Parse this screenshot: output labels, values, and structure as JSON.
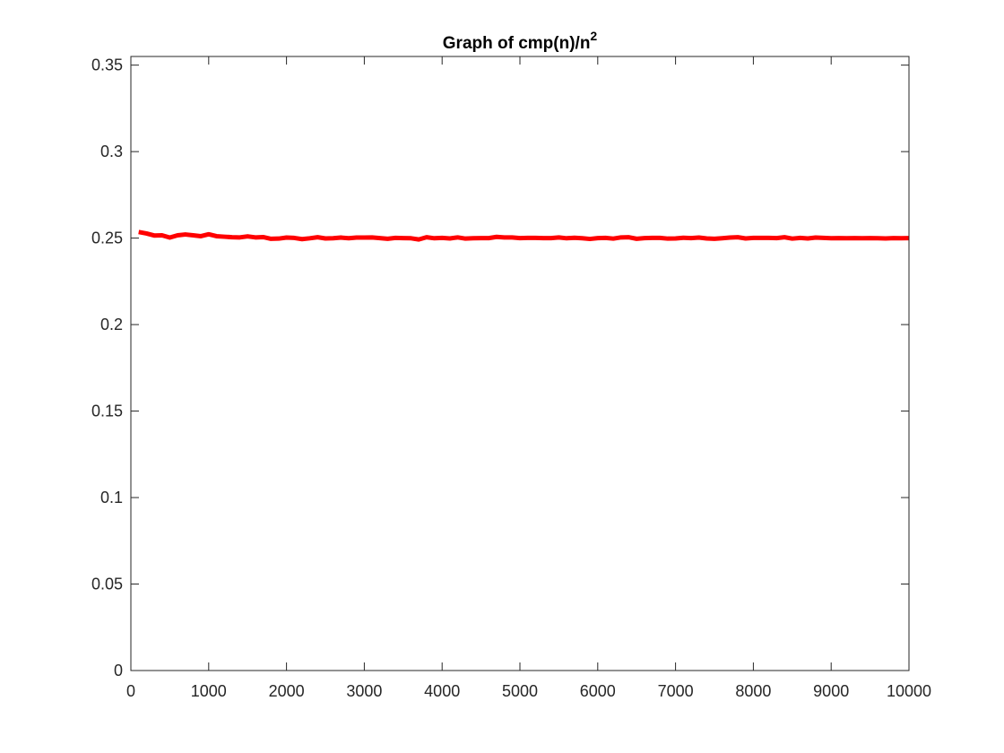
{
  "chart_data": {
    "type": "line",
    "title": "Graph of cmp(n)/n",
    "title_superscript": "2",
    "xlabel": "",
    "ylabel": "",
    "xlim": [
      0,
      10000
    ],
    "ylim": [
      0,
      0.355
    ],
    "xticks": [
      0,
      1000,
      2000,
      3000,
      4000,
      5000,
      6000,
      7000,
      8000,
      9000,
      10000
    ],
    "xtick_labels": [
      "0",
      "1000",
      "2000",
      "3000",
      "4000",
      "5000",
      "6000",
      "7000",
      "8000",
      "9000",
      "10000"
    ],
    "yticks": [
      0,
      0.05,
      0.1,
      0.15,
      0.2,
      0.25,
      0.3,
      0.35
    ],
    "ytick_labels": [
      "0",
      "0.05",
      "0.1",
      "0.15",
      "0.2",
      "0.25",
      "0.3",
      "0.35"
    ],
    "grid": false,
    "series": [
      {
        "color": "#ff0000",
        "x": [
          100,
          200,
          300,
          400,
          500,
          600,
          700,
          800,
          900,
          1000,
          1100,
          1200,
          1300,
          1400,
          1500,
          1600,
          1700,
          1800,
          1900,
          2000,
          2100,
          2200,
          2300,
          2400,
          2500,
          2600,
          2700,
          2800,
          2900,
          3000,
          3100,
          3200,
          3300,
          3400,
          3500,
          3600,
          3700,
          3800,
          3900,
          4000,
          4100,
          4200,
          4300,
          4400,
          4500,
          4600,
          4700,
          4800,
          4900,
          5000,
          5100,
          5200,
          5300,
          5400,
          5500,
          5600,
          5700,
          5800,
          5900,
          6000,
          6100,
          6200,
          6300,
          6400,
          6500,
          6600,
          6700,
          6800,
          6900,
          7000,
          7100,
          7200,
          7300,
          7400,
          7500,
          7600,
          7700,
          7800,
          7900,
          8000,
          8100,
          8200,
          8300,
          8400,
          8500,
          8600,
          8700,
          8800,
          8900,
          9000,
          9100,
          9200,
          9300,
          9400,
          9500,
          9600,
          9700,
          9800,
          9900,
          10000
        ],
        "y": [
          0.2535,
          0.2527,
          0.2515,
          0.2516,
          0.2503,
          0.2516,
          0.2521,
          0.2516,
          0.2511,
          0.2522,
          0.2511,
          0.2508,
          0.2505,
          0.2504,
          0.251,
          0.2504,
          0.2506,
          0.2496,
          0.2497,
          0.2503,
          0.2501,
          0.2494,
          0.2499,
          0.2505,
          0.2498,
          0.2499,
          0.2503,
          0.2499,
          0.2503,
          0.2503,
          0.2504,
          0.25,
          0.2496,
          0.2501,
          0.25,
          0.2499,
          0.2492,
          0.2505,
          0.2499,
          0.2501,
          0.2498,
          0.2504,
          0.2497,
          0.2499,
          0.25,
          0.25,
          0.2507,
          0.2504,
          0.2504,
          0.25,
          0.2501,
          0.2501,
          0.25,
          0.25,
          0.2504,
          0.2499,
          0.2502,
          0.2499,
          0.2495,
          0.25,
          0.2501,
          0.2497,
          0.2504,
          0.2505,
          0.2496,
          0.25,
          0.2501,
          0.2501,
          0.2497,
          0.2498,
          0.2502,
          0.25,
          0.2503,
          0.2498,
          0.2496,
          0.2499,
          0.2503,
          0.2505,
          0.2498,
          0.2501,
          0.2501,
          0.2501,
          0.25,
          0.2505,
          0.2497,
          0.2501,
          0.2498,
          0.2503,
          0.2501,
          0.2499,
          0.25,
          0.2499,
          0.25,
          0.2499,
          0.25,
          0.2499,
          0.2498,
          0.25,
          0.2499,
          0.25
        ]
      }
    ]
  }
}
